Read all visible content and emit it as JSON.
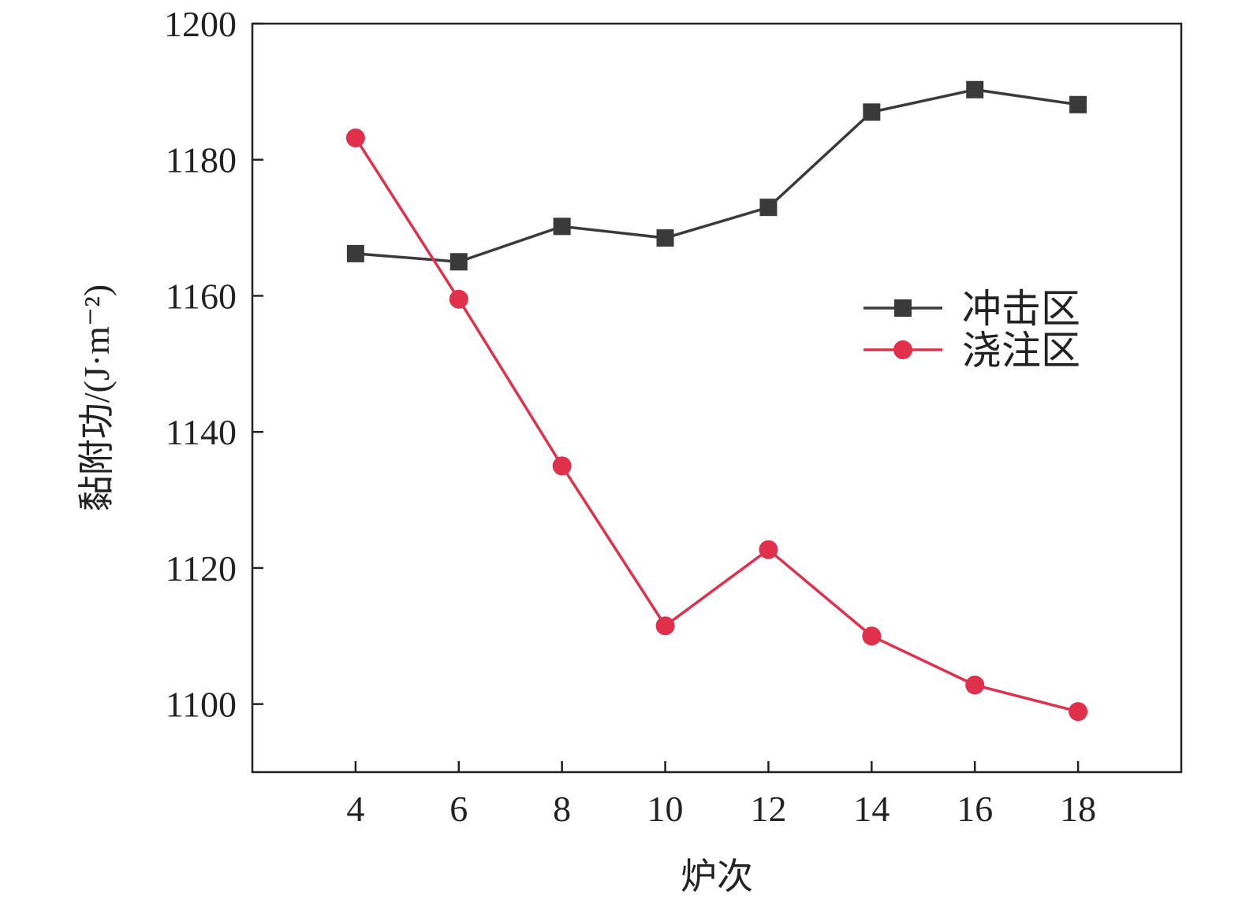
{
  "chart_data": {
    "type": "line",
    "title": "",
    "xlabel": "炉次",
    "ylabel": "黏附功/(J·m⁻²)",
    "x": [
      4,
      6,
      8,
      10,
      12,
      14,
      16,
      18
    ],
    "xticks": [
      "4",
      "6",
      "8",
      "10",
      "12",
      "14",
      "16",
      "18"
    ],
    "yticks": [
      "1100",
      "1120",
      "1140",
      "1160",
      "1180",
      "1200"
    ],
    "xlim": [
      2,
      20
    ],
    "ylim": [
      1090,
      1200
    ],
    "grid": false,
    "legend_position": "right",
    "series": [
      {
        "name": "冲击区",
        "marker": "square",
        "color": "#3a3a3a",
        "values": [
          1166.2,
          1165.0,
          1170.2,
          1168.5,
          1173.0,
          1187.0,
          1190.3,
          1188.1
        ]
      },
      {
        "name": "浇注区",
        "marker": "circle",
        "color": "#e0304c",
        "values": [
          1183.2,
          1159.5,
          1135.0,
          1111.5,
          1122.7,
          1110.0,
          1102.8,
          1098.9
        ]
      }
    ]
  }
}
